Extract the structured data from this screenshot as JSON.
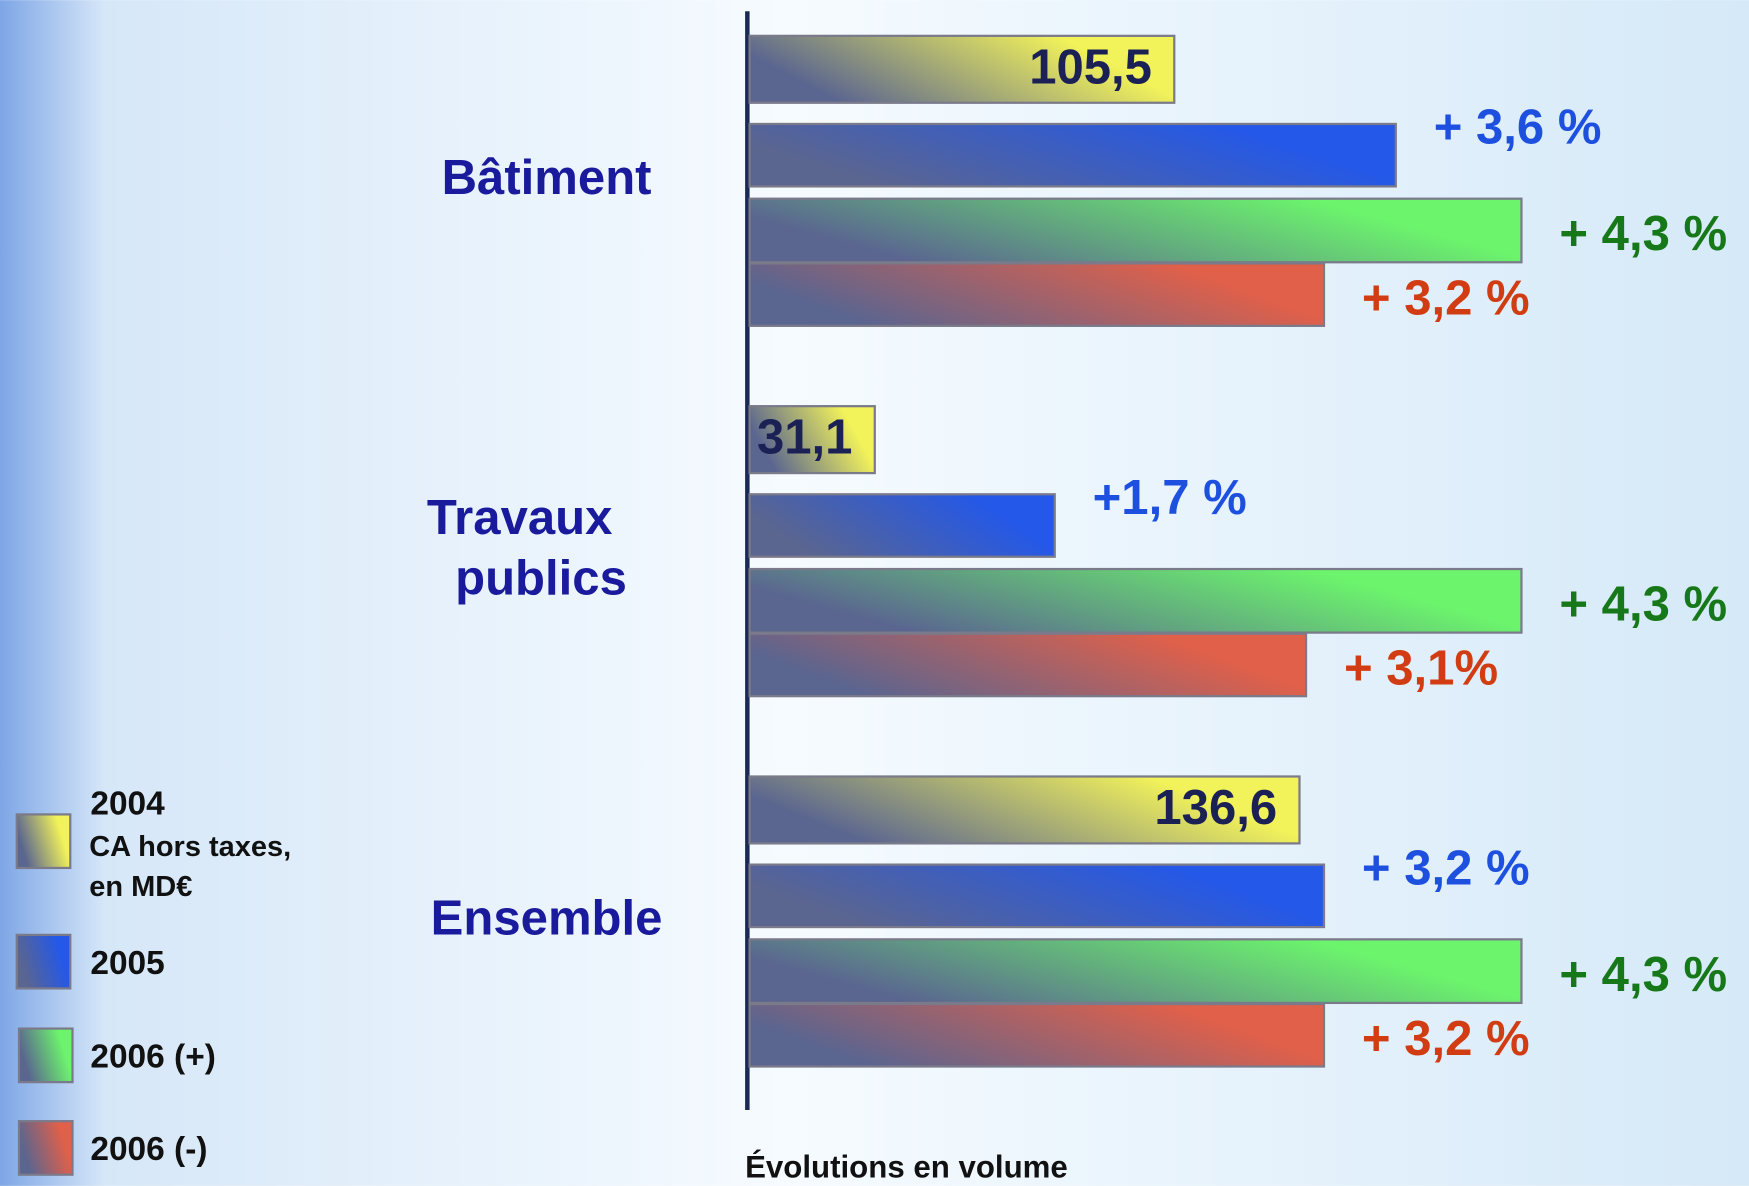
{
  "chart_data": {
    "type": "bar",
    "orientation": "horizontal",
    "categories": [
      "Bâtiment",
      "Travaux publics",
      "Ensemble"
    ],
    "series": [
      {
        "name": "2004",
        "color": "#f2f25a",
        "label_color": "#1b2155",
        "values": [
          105.5,
          31.1,
          136.6
        ],
        "value_labels": [
          "105,5",
          "31,1",
          "136,6"
        ]
      },
      {
        "name": "2005",
        "color": "#2458e8",
        "label_color": "#1e50e0",
        "values": [
          3.6,
          1.7,
          3.2
        ],
        "value_labels": [
          "+ 3,6 %",
          "+1,7 %",
          "+ 3,2 %"
        ]
      },
      {
        "name": "2006 (+)",
        "color": "#6cf56c",
        "label_color": "#17781a",
        "values": [
          4.3,
          4.3,
          4.3
        ],
        "value_labels": [
          "+ 4,3 %",
          "+ 4,3 %",
          "+ 4,3 %"
        ]
      },
      {
        "name": "2006 (-)",
        "color": "#e0604a",
        "label_color": "#d23c12",
        "values": [
          3.2,
          3.1,
          3.2
        ],
        "value_labels": [
          "+ 3,2 %",
          "+ 3,1%",
          "+ 3,2 %"
        ]
      }
    ],
    "legend_note": "CA hors taxes, en MD€",
    "x_label": "Évolutions en volume",
    "category_color": "#1a1a9c",
    "legend": "bottom-left"
  }
}
